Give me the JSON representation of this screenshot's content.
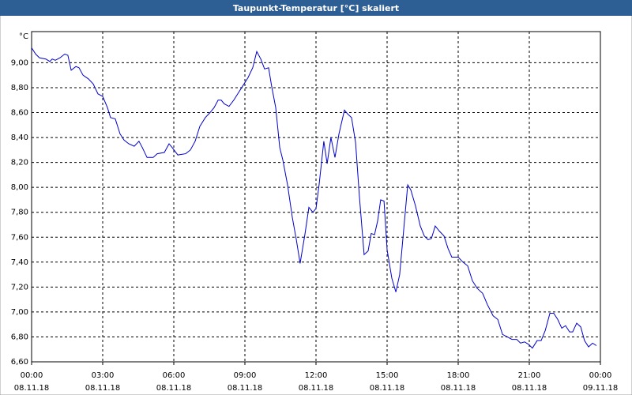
{
  "chart_data": {
    "type": "line",
    "title": "Taupunkt-Temperatur [°C] skaliert",
    "y_label": "°C",
    "x": [
      0,
      0.17,
      0.33,
      0.6,
      0.77,
      0.87,
      1,
      1.2,
      1.4,
      1.53,
      1.67,
      1.87,
      2,
      2.17,
      2.4,
      2.6,
      2.8,
      3,
      3.2,
      3.33,
      3.53,
      3.73,
      3.9,
      4.1,
      4.33,
      4.53,
      4.67,
      4.87,
      5.13,
      5.3,
      5.6,
      5.8,
      5.93,
      6.17,
      6.5,
      6.7,
      6.9,
      7.1,
      7.33,
      7.53,
      7.7,
      7.87,
      8,
      8.13,
      8.33,
      8.53,
      8.73,
      8.93,
      9.13,
      9.33,
      9.5,
      9.67,
      9.83,
      10,
      10.13,
      10.3,
      10.47,
      10.6,
      10.8,
      11,
      11.17,
      11.33,
      11.53,
      11.7,
      11.87,
      12,
      12.13,
      12.33,
      12.47,
      12.63,
      12.8,
      12.97,
      13.2,
      13.33,
      13.5,
      13.67,
      13.83,
      14.03,
      14.2,
      14.33,
      14.47,
      14.6,
      14.73,
      14.87,
      15,
      15.2,
      15.37,
      15.53,
      15.7,
      15.87,
      16,
      16.2,
      16.4,
      16.57,
      16.73,
      16.87,
      17.03,
      17.2,
      17.4,
      17.57,
      17.73,
      18,
      18.2,
      18.4,
      18.6,
      18.8,
      19.03,
      19.23,
      19.47,
      19.67,
      19.87,
      20.07,
      20.27,
      20.47,
      20.63,
      20.8,
      20.97,
      21.13,
      21.33,
      21.5,
      21.67,
      21.87,
      22.03,
      22.2,
      22.37,
      22.53,
      22.7,
      22.83,
      23,
      23.17,
      23.33,
      23.5,
      23.67,
      23.83
    ],
    "series": [
      {
        "name": "Taupunkt-Temperatur",
        "color": "#0000cc",
        "values": [
          9.12,
          9.07,
          9.04,
          9.03,
          9.01,
          9.03,
          9.02,
          9.04,
          9.07,
          9.06,
          8.94,
          8.97,
          8.96,
          8.9,
          8.87,
          8.83,
          8.75,
          8.73,
          8.64,
          8.56,
          8.55,
          8.43,
          8.38,
          8.35,
          8.33,
          8.37,
          8.32,
          8.24,
          8.24,
          8.27,
          8.28,
          8.35,
          8.32,
          8.26,
          8.27,
          8.3,
          8.37,
          8.49,
          8.56,
          8.6,
          8.64,
          8.7,
          8.7,
          8.67,
          8.65,
          8.7,
          8.76,
          8.82,
          8.88,
          8.96,
          9.09,
          9.03,
          8.95,
          8.96,
          8.81,
          8.64,
          8.32,
          8.22,
          8.02,
          7.76,
          7.58,
          7.39,
          7.62,
          7.84,
          7.8,
          7.83,
          8.02,
          8.37,
          8.19,
          8.4,
          8.24,
          8.43,
          8.62,
          8.59,
          8.56,
          8.36,
          7.93,
          7.46,
          7.49,
          7.63,
          7.62,
          7.73,
          7.9,
          7.89,
          7.5,
          7.27,
          7.16,
          7.3,
          7.66,
          8.02,
          7.98,
          7.85,
          7.69,
          7.61,
          7.58,
          7.59,
          7.69,
          7.65,
          7.61,
          7.51,
          7.44,
          7.44,
          7.4,
          7.37,
          7.25,
          7.19,
          7.15,
          7.06,
          6.97,
          6.94,
          6.82,
          6.8,
          6.78,
          6.78,
          6.75,
          6.76,
          6.74,
          6.71,
          6.77,
          6.77,
          6.85,
          6.99,
          6.99,
          6.94,
          6.87,
          6.89,
          6.84,
          6.84,
          6.91,
          6.88,
          6.77,
          6.72,
          6.75,
          6.73
        ]
      }
    ],
    "xlim": [
      0,
      24
    ],
    "xticks": [
      {
        "value": 0,
        "label": "00:00"
      },
      {
        "value": 3,
        "label": "03:00"
      },
      {
        "value": 6,
        "label": "06:00"
      },
      {
        "value": 9,
        "label": "09:00"
      },
      {
        "value": 12,
        "label": "12:00"
      },
      {
        "value": 15,
        "label": "15:00"
      },
      {
        "value": 18,
        "label": "18:00"
      },
      {
        "value": 21,
        "label": "21:00"
      },
      {
        "value": 24,
        "label": "00:00"
      }
    ],
    "xtick_dates": [
      "08.11.18",
      "08.11.18",
      "08.11.18",
      "08.11.18",
      "08.11.18",
      "08.11.18",
      "08.11.18",
      "08.11.18",
      "09.11.18"
    ],
    "ylim": [
      6.6,
      9.25
    ],
    "yticks": [
      {
        "value": 6.6,
        "label": "6,60"
      },
      {
        "value": 6.8,
        "label": "6,80"
      },
      {
        "value": 7,
        "label": "7,00"
      },
      {
        "value": 7.2,
        "label": "7,20"
      },
      {
        "value": 7.4,
        "label": "7,40"
      },
      {
        "value": 7.6,
        "label": "7,60"
      },
      {
        "value": 7.8,
        "label": "7,80"
      },
      {
        "value": 8,
        "label": "8,00"
      },
      {
        "value": 8.2,
        "label": "8,20"
      },
      {
        "value": 8.4,
        "label": "8,40"
      },
      {
        "value": 8.6,
        "label": "8,60"
      },
      {
        "value": 8.8,
        "label": "8,80"
      },
      {
        "value": 9,
        "label": "9,00"
      }
    ],
    "grid": true
  }
}
